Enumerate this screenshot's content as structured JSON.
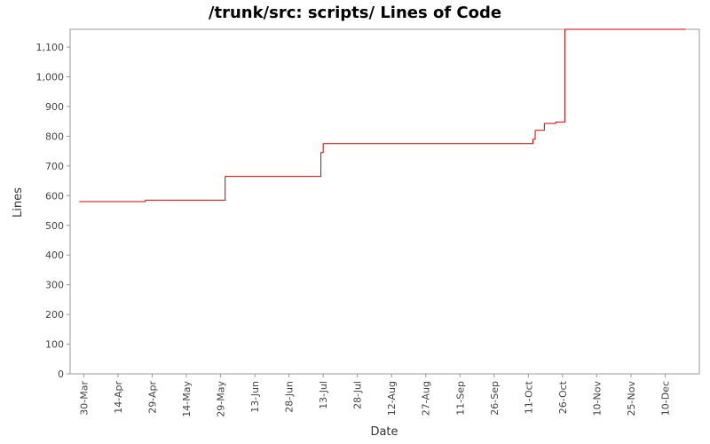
{
  "chart_data": {
    "type": "line",
    "title": "/trunk/src: scripts/ Lines of Code",
    "x_label": "Date",
    "y_label": "Lines",
    "step": true,
    "color": "#cc0000",
    "x": [
      "28-Mar",
      "26-Apr",
      "31-May",
      "12-Jul",
      "13-Jul",
      "13-Oct",
      "14-Oct",
      "18-Oct",
      "23-Oct",
      "27-Oct",
      "19-Dec"
    ],
    "values": [
      580,
      585,
      665,
      745,
      775,
      790,
      820,
      843,
      848,
      1160,
      1160
    ],
    "xlim": [
      "24-Mar",
      "25-Dec"
    ],
    "xticks": [
      "30-Mar",
      "14-Apr",
      "29-Apr",
      "14-May",
      "29-May",
      "13-Jun",
      "28-Jun",
      "13-Jul",
      "28-Jul",
      "12-Aug",
      "27-Aug",
      "11-Sep",
      "26-Sep",
      "11-Oct",
      "26-Oct",
      "10-Nov",
      "25-Nov",
      "10-Dec"
    ],
    "ylim": [
      0,
      1160
    ],
    "yticks": [
      0,
      100,
      200,
      300,
      400,
      500,
      600,
      700,
      800,
      900,
      {
        "value": 1000,
        "label": "1,000"
      },
      {
        "value": 1100,
        "label": "1,100"
      }
    ]
  }
}
